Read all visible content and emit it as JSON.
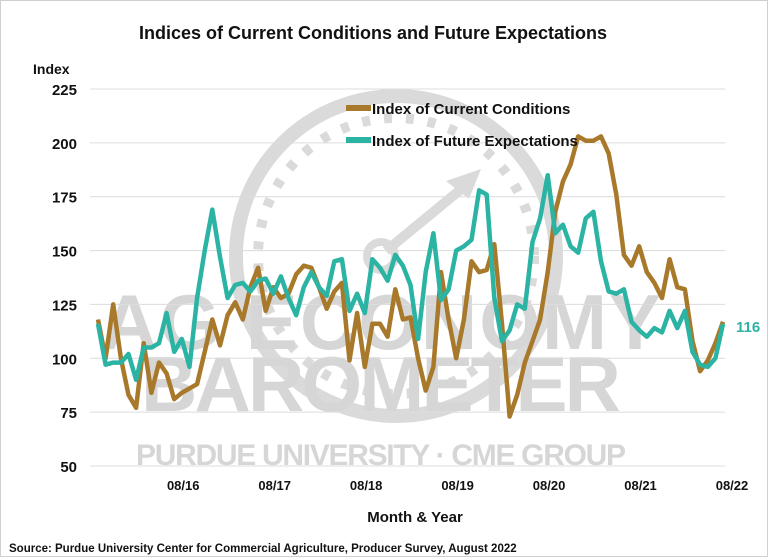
{
  "chart_data": {
    "type": "line",
    "title": "Indices of Current Conditions and Future Expectations",
    "ylabel": "Index",
    "xlabel": "Month & Year",
    "ylim": [
      50,
      225
    ],
    "yticks": [
      50,
      75,
      100,
      125,
      150,
      175,
      200,
      225
    ],
    "grid": true,
    "legend_position": "top-center",
    "x_start": "10/15",
    "x_end": "08/22",
    "x_frequency": "monthly",
    "xtick_labels": [
      "08/16",
      "08/17",
      "08/18",
      "08/19",
      "08/20",
      "08/21",
      "08/22"
    ],
    "series": [
      {
        "name": "Index of Current Conditions",
        "color": "#a8792a",
        "values": [
          118,
          100,
          125,
          100,
          83,
          77,
          107,
          84,
          98,
          93,
          81,
          84,
          86,
          88,
          103,
          118,
          106,
          120,
          126,
          118,
          133,
          142,
          122,
          133,
          128,
          130,
          139,
          143,
          142,
          133,
          123,
          131,
          135,
          99,
          121,
          96,
          116,
          116,
          110,
          132,
          118,
          119,
          100,
          85,
          96,
          140,
          118,
          100,
          118,
          145,
          140,
          141,
          153,
          116,
          73,
          83,
          98,
          108,
          118,
          140,
          168,
          182,
          190,
          203,
          201,
          201,
          203,
          195,
          176,
          148,
          143,
          152,
          140,
          135,
          128,
          146,
          133,
          132,
          108,
          94,
          99,
          107,
          117
        ]
      },
      {
        "name": "Index of Future Expectations",
        "color": "#2bb3a3",
        "values": [
          116,
          97,
          98,
          98,
          102,
          90,
          105,
          105,
          107,
          121,
          103,
          109,
          96,
          128,
          150,
          169,
          147,
          128,
          134,
          135,
          131,
          136,
          137,
          130,
          138,
          128,
          120,
          133,
          140,
          133,
          129,
          145,
          146,
          122,
          130,
          121,
          146,
          142,
          136,
          148,
          143,
          134,
          109,
          140,
          158,
          127,
          132,
          150,
          152,
          155,
          178,
          176,
          128,
          108,
          113,
          125,
          123,
          154,
          165,
          185,
          158,
          162,
          152,
          149,
          165,
          168,
          145,
          131,
          130,
          132,
          117,
          113,
          110,
          114,
          112,
          122,
          114,
          122,
          103,
          97,
          96,
          100,
          116
        ]
      }
    ],
    "annotations": [
      {
        "series": "Index of Future Expectations",
        "label": "116"
      }
    ]
  },
  "source": "Source: Purdue University Center for Commercial Agriculture, Producer Survey, August 2022",
  "watermark": {
    "line1": "AG ECONOMY",
    "line2": "BAROMETER",
    "line3": "PURDUE UNIVERSITY  ·  CME GROUP"
  }
}
